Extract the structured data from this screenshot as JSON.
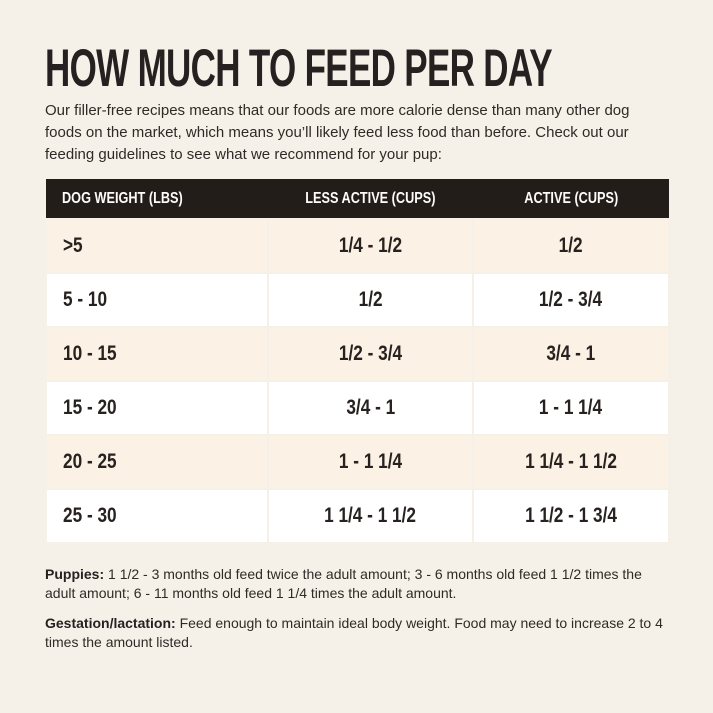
{
  "page": {
    "title": "HOW MUCH TO FEED PER DAY",
    "intro": "Our filler-free recipes means that our foods are more calorie dense than many other dog foods on the market, which means you’ll likely feed less food than before. Check out our feeding guidelines to see what we recommend for your pup:"
  },
  "table": {
    "headers": [
      "DOG WEIGHT (LBS)",
      "LESS ACTIVE (CUPS)",
      "ACTIVE (CUPS)"
    ],
    "rows": [
      {
        "weight": ">5",
        "less_active": "1/4 - 1/2",
        "active": "1/2"
      },
      {
        "weight": "5 - 10",
        "less_active": "1/2",
        "active": "1/2 - 3/4"
      },
      {
        "weight": "10 - 15",
        "less_active": "1/2 - 3/4",
        "active": "3/4 - 1"
      },
      {
        "weight": "15 - 20",
        "less_active": "3/4 - 1",
        "active": "1 - 1 1/4"
      },
      {
        "weight": "20 - 25",
        "less_active": "1 - 1 1/4",
        "active": "1 1/4 - 1 1/2"
      },
      {
        "weight": "25 - 30",
        "less_active": "1 1/4 - 1 1/2",
        "active": "1 1/2 - 1 3/4"
      }
    ]
  },
  "notes": [
    {
      "label": "Puppies:",
      "text": "1 1/2 - 3 months old feed twice the adult amount; 3 - 6 months old feed 1 1/2 times the adult amount; 6 - 11 months old feed 1 1/4 times the adult amount."
    },
    {
      "label": "Gestation/lactation:",
      "text": "Feed enough to maintain ideal body weight. Food may need to increase 2 to 4 times the amount listed."
    }
  ],
  "colors": {
    "page_background": "#f6f1e8",
    "table_header_background": "#221d19",
    "table_header_text": "#fdfcfa",
    "row_cream": "#fbf1e4",
    "row_white": "#ffffff",
    "text": "#2e2a26"
  }
}
